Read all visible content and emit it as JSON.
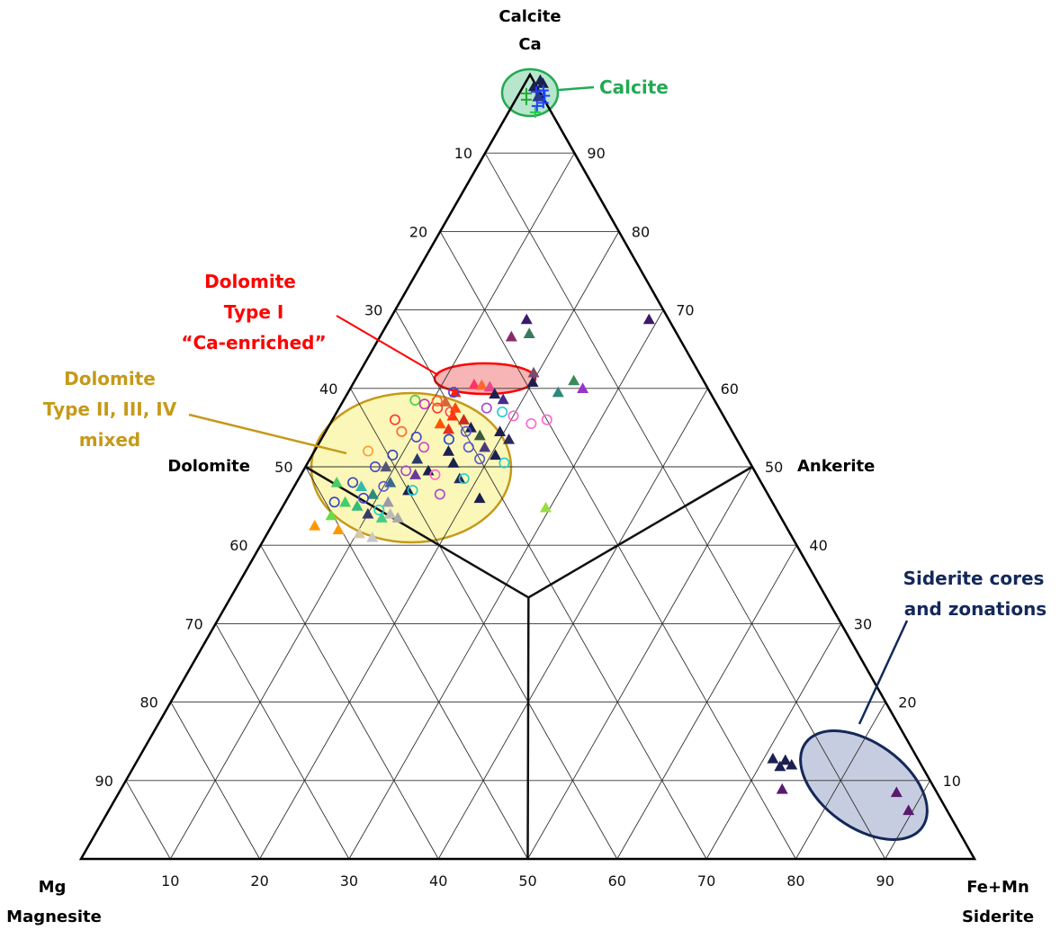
{
  "chart_data": {
    "type": "ternary",
    "corners": {
      "top": [
        "Calcite",
        "Ca"
      ],
      "left": [
        "Mg",
        "Magnesite"
      ],
      "right": [
        "Fe+Mn",
        "Siderite"
      ]
    },
    "edge_labels": {
      "dolomite": "Dolomite",
      "ankerite": "Ankerite"
    },
    "ticks": {
      "left": [
        "10",
        "20",
        "30",
        "40",
        "50",
        "60",
        "70",
        "80",
        "90"
      ],
      "right": [
        "90",
        "80",
        "70",
        "60",
        "50",
        "40",
        "30",
        "20",
        "10"
      ],
      "bottom": [
        "10",
        "20",
        "30",
        "40",
        "50",
        "60",
        "70",
        "80",
        "90"
      ]
    },
    "regions": [
      {
        "name": "calcite",
        "lines": [
          "Calcite"
        ],
        "color": "#22aa55",
        "fill": "#b8e6cc"
      },
      {
        "name": "dolomite-type-i",
        "lines": [
          "Dolomite",
          "Type I",
          "“Ca-enriched”"
        ],
        "color": "#ff0000",
        "fill": "#f7b5b5"
      },
      {
        "name": "dolomite-type-mixed",
        "lines": [
          "Dolomite",
          "Type II, III, IV",
          "mixed"
        ],
        "color": "#c59a1a",
        "fill": "#fbf7b8"
      },
      {
        "name": "siderite",
        "lines": [
          "Siderite cores",
          "and zonations"
        ],
        "color": "#14285a",
        "fill": "#c7cde0"
      }
    ],
    "points": [
      {
        "ca": 99.3,
        "fe": 1.5,
        "m": "tri",
        "c": "#1b2050"
      },
      {
        "ca": 98.9,
        "fe": 2.0,
        "m": "tri",
        "c": "#1b2050"
      },
      {
        "ca": 98.5,
        "fe": 1.2,
        "m": "tri",
        "c": "#1b2050"
      },
      {
        "ca": 98.0,
        "fe": 2.5,
        "m": "plus",
        "c": "#2040ff"
      },
      {
        "ca": 97.8,
        "fe": 1.8,
        "m": "plus",
        "c": "#2040ff"
      },
      {
        "ca": 97.6,
        "fe": 0.8,
        "m": "plus",
        "c": "#22aa33"
      },
      {
        "ca": 97.3,
        "fe": 3.0,
        "m": "plus",
        "c": "#2040ff"
      },
      {
        "ca": 96.8,
        "fe": 1.2,
        "m": "plus",
        "c": "#22aa33"
      },
      {
        "ca": 96.0,
        "fe": 2.8,
        "m": "plus",
        "c": "#2040ff"
      },
      {
        "ca": 95.2,
        "fe": 3.0,
        "m": "plus",
        "c": "#22cc44"
      },
      {
        "ca": 96.4,
        "fe": 3.3,
        "m": "plus",
        "c": "#2040ff"
      },
      {
        "ca": 97.2,
        "fe": 2.3,
        "m": "tri",
        "c": "#2a3a8a"
      },
      {
        "ca": 68.8,
        "fe": 15.3,
        "m": "tri",
        "c": "#3a1a6a"
      },
      {
        "ca": 68.8,
        "fe": 29.0,
        "m": "tri",
        "c": "#3a1a6a"
      },
      {
        "ca": 67.0,
        "fe": 16.5,
        "m": "tri",
        "c": "#3a7a5a"
      },
      {
        "ca": 66.6,
        "fe": 14.7,
        "m": "tri",
        "c": "#8a2a6a"
      },
      {
        "ca": 62.0,
        "fe": 19.5,
        "m": "tri",
        "c": "#7a4a6a"
      },
      {
        "ca": 60.8,
        "fe": 20.0,
        "m": "tri",
        "c": "#1b2050"
      },
      {
        "ca": 61.0,
        "fe": 24.5,
        "m": "tri",
        "c": "#3a8a5a"
      },
      {
        "ca": 60.0,
        "fe": 26.0,
        "m": "tri",
        "c": "#9933cc"
      },
      {
        "ca": 59.5,
        "fe": 23.5,
        "m": "tri",
        "c": "#2b8a7a"
      },
      {
        "ca": 60.5,
        "fe": 13.6,
        "m": "tri",
        "c": "#ff3366"
      },
      {
        "ca": 60.4,
        "fe": 14.5,
        "m": "tri",
        "c": "#ff6633"
      },
      {
        "ca": 60.2,
        "fe": 15.5,
        "m": "tri",
        "c": "#e64a8a"
      },
      {
        "ca": 59.5,
        "fe": 12.0,
        "m": "tri",
        "c": "#ff2200"
      },
      {
        "ca": 59.3,
        "fe": 16.5,
        "m": "tri",
        "c": "#1b2050"
      },
      {
        "ca": 58.6,
        "fe": 17.8,
        "m": "tri",
        "c": "#4a2a8a"
      },
      {
        "ca": 58.3,
        "fe": 11.5,
        "m": "tri",
        "c": "#d9663a"
      },
      {
        "ca": 57.5,
        "fe": 13.0,
        "m": "tri",
        "c": "#ff4400"
      },
      {
        "ca": 56.5,
        "fe": 13.2,
        "m": "tri",
        "c": "#ff3300"
      },
      {
        "ca": 56.0,
        "fe": 14.7,
        "m": "tri",
        "c": "#cc2a1a"
      },
      {
        "ca": 55.5,
        "fe": 12.3,
        "m": "tri",
        "c": "#ff5500"
      },
      {
        "ca": 54.8,
        "fe": 13.6,
        "m": "tri",
        "c": "#e63319"
      },
      {
        "ca": 55.0,
        "fe": 16.0,
        "m": "tri",
        "c": "#1b2050"
      },
      {
        "ca": 54.0,
        "fe": 17.5,
        "m": "tri",
        "c": "#3a5a3a"
      },
      {
        "ca": 54.5,
        "fe": 19.5,
        "m": "tri",
        "c": "#1b2050"
      },
      {
        "ca": 53.5,
        "fe": 21.0,
        "m": "tri",
        "c": "#2a2a5a"
      },
      {
        "ca": 52.5,
        "fe": 18.8,
        "m": "tri",
        "c": "#4a3a7a"
      },
      {
        "ca": 52.0,
        "fe": 15.0,
        "m": "tri",
        "c": "#1b2050"
      },
      {
        "ca": 51.5,
        "fe": 20.5,
        "m": "tri",
        "c": "#1b2050"
      },
      {
        "ca": 51.0,
        "fe": 12.0,
        "m": "tri",
        "c": "#2a3a6a"
      },
      {
        "ca": 50.5,
        "fe": 16.3,
        "m": "tri",
        "c": "#1b2050"
      },
      {
        "ca": 50.0,
        "fe": 9.0,
        "m": "tri",
        "c": "#555577"
      },
      {
        "ca": 49.5,
        "fe": 14.0,
        "m": "tri",
        "c": "#1b2050"
      },
      {
        "ca": 49.0,
        "fe": 12.8,
        "m": "tri",
        "c": "#6a3a9a"
      },
      {
        "ca": 48.5,
        "fe": 18.0,
        "m": "tri",
        "c": "#2a2a5a"
      },
      {
        "ca": 48.0,
        "fe": 10.5,
        "m": "tri",
        "c": "#3a6a8a"
      },
      {
        "ca": 47.0,
        "fe": 13.0,
        "m": "tri",
        "c": "#1b2050"
      },
      {
        "ca": 46.5,
        "fe": 9.3,
        "m": "tri",
        "c": "#2b8a7a"
      },
      {
        "ca": 46.0,
        "fe": 21.5,
        "m": "tri",
        "c": "#1b2050"
      },
      {
        "ca": 45.5,
        "fe": 11.5,
        "m": "tri",
        "c": "#9999aa"
      },
      {
        "ca": 45.5,
        "fe": 6.7,
        "m": "tri",
        "c": "#44cc66"
      },
      {
        "ca": 45.0,
        "fe": 8.3,
        "m": "tri",
        "c": "#33bb77"
      },
      {
        "ca": 44.8,
        "fe": 29.5,
        "m": "tri",
        "c": "#99dd44"
      },
      {
        "ca": 44.0,
        "fe": 10.0,
        "m": "tri",
        "c": "#3a3a6a"
      },
      {
        "ca": 44.0,
        "fe": 12.5,
        "m": "tri",
        "c": "#bbbbbb"
      },
      {
        "ca": 43.8,
        "fe": 6.0,
        "m": "tri",
        "c": "#66dd44"
      },
      {
        "ca": 43.5,
        "fe": 11.8,
        "m": "tri",
        "c": "#44cc88"
      },
      {
        "ca": 43.5,
        "fe": 13.6,
        "m": "tri",
        "c": "#aaaaaa"
      },
      {
        "ca": 42.5,
        "fe": 4.8,
        "m": "tri",
        "c": "#ff9900"
      },
      {
        "ca": 42.0,
        "fe": 7.7,
        "m": "tri",
        "c": "#ff9900"
      },
      {
        "ca": 41.5,
        "fe": 10.3,
        "m": "tri",
        "c": "#d6c9a6"
      },
      {
        "ca": 41.0,
        "fe": 12.0,
        "m": "tri",
        "c": "#c8c8c8"
      },
      {
        "ca": 48.0,
        "fe": 4.5,
        "m": "tri",
        "c": "#44cc66"
      },
      {
        "ca": 47.5,
        "fe": 7.5,
        "m": "tri",
        "c": "#33bbaa"
      },
      {
        "ca": 58.5,
        "fe": 8.0,
        "m": "circ",
        "c": "#44cc44"
      },
      {
        "ca": 58.0,
        "fe": 9.3,
        "m": "circ",
        "c": "#cc33cc"
      },
      {
        "ca": 57.5,
        "fe": 11.0,
        "m": "circ",
        "c": "#ff3333"
      },
      {
        "ca": 58.4,
        "fe": 10.5,
        "m": "circ",
        "c": "#ff6633"
      },
      {
        "ca": 57.0,
        "fe": 12.7,
        "m": "circ",
        "c": "#ff4444"
      },
      {
        "ca": 59.5,
        "fe": 11.8,
        "m": "circ",
        "c": "#4444dd"
      },
      {
        "ca": 57.5,
        "fe": 16.5,
        "m": "circ",
        "c": "#aa44cc"
      },
      {
        "ca": 57.0,
        "fe": 18.5,
        "m": "circ",
        "c": "#22cccc"
      },
      {
        "ca": 56.5,
        "fe": 20.0,
        "m": "circ",
        "c": "#ff66cc"
      },
      {
        "ca": 55.5,
        "fe": 22.5,
        "m": "circ",
        "c": "#ff66cc"
      },
      {
        "ca": 56.0,
        "fe": 24.0,
        "m": "circ",
        "c": "#ff66cc"
      },
      {
        "ca": 54.5,
        "fe": 15.7,
        "m": "circ",
        "c": "#5555dd"
      },
      {
        "ca": 53.8,
        "fe": 10.5,
        "m": "circ",
        "c": "#4444cc"
      },
      {
        "ca": 53.5,
        "fe": 14.3,
        "m": "circ",
        "c": "#2244cc"
      },
      {
        "ca": 52.5,
        "fe": 17.0,
        "m": "circ",
        "c": "#5555dd"
      },
      {
        "ca": 52.5,
        "fe": 12.0,
        "m": "circ",
        "c": "#cc44cc"
      },
      {
        "ca": 51.5,
        "fe": 9.0,
        "m": "circ",
        "c": "#3344bb"
      },
      {
        "ca": 51.0,
        "fe": 19.0,
        "m": "circ",
        "c": "#5555dd"
      },
      {
        "ca": 50.5,
        "fe": 22.0,
        "m": "circ",
        "c": "#22cccc"
      },
      {
        "ca": 50.0,
        "fe": 7.8,
        "m": "circ",
        "c": "#4444cc"
      },
      {
        "ca": 49.5,
        "fe": 11.5,
        "m": "circ",
        "c": "#aa44cc"
      },
      {
        "ca": 49.0,
        "fe": 15.0,
        "m": "circ",
        "c": "#ff66cc"
      },
      {
        "ca": 48.5,
        "fe": 18.5,
        "m": "circ",
        "c": "#22cccc"
      },
      {
        "ca": 48.0,
        "fe": 6.3,
        "m": "circ",
        "c": "#3344bb"
      },
      {
        "ca": 47.5,
        "fe": 10.0,
        "m": "circ",
        "c": "#5555dd"
      },
      {
        "ca": 47.0,
        "fe": 13.5,
        "m": "circ",
        "c": "#22cccc"
      },
      {
        "ca": 46.5,
        "fe": 16.8,
        "m": "circ",
        "c": "#aa44cc"
      },
      {
        "ca": 46.0,
        "fe": 8.5,
        "m": "circ",
        "c": "#4444cc"
      },
      {
        "ca": 45.5,
        "fe": 5.5,
        "m": "circ",
        "c": "#3344bb"
      },
      {
        "ca": 44.5,
        "fe": 11.0,
        "m": "circ",
        "c": "#22cccc"
      },
      {
        "ca": 52.0,
        "fe": 6.0,
        "m": "circ",
        "c": "#ff9933"
      },
      {
        "ca": 54.5,
        "fe": 8.5,
        "m": "circ",
        "c": "#ff6633"
      },
      {
        "ca": 56.0,
        "fe": 7.0,
        "m": "circ",
        "c": "#ff3333"
      },
      {
        "ca": 12.8,
        "fe": 71.0,
        "m": "tri",
        "c": "#1b2050"
      },
      {
        "ca": 12.6,
        "fe": 72.5,
        "m": "tri",
        "c": "#1b2050"
      },
      {
        "ca": 12.0,
        "fe": 73.5,
        "m": "tri",
        "c": "#1b2050"
      },
      {
        "ca": 11.8,
        "fe": 72.3,
        "m": "tri",
        "c": "#1b2050"
      },
      {
        "ca": 8.9,
        "fe": 74.0,
        "m": "tri",
        "c": "#5a1a70"
      },
      {
        "ca": 8.5,
        "fe": 87.0,
        "m": "tri",
        "c": "#5a1a70"
      },
      {
        "ca": 6.2,
        "fe": 89.5,
        "m": "tri",
        "c": "#5a1a70"
      }
    ]
  }
}
